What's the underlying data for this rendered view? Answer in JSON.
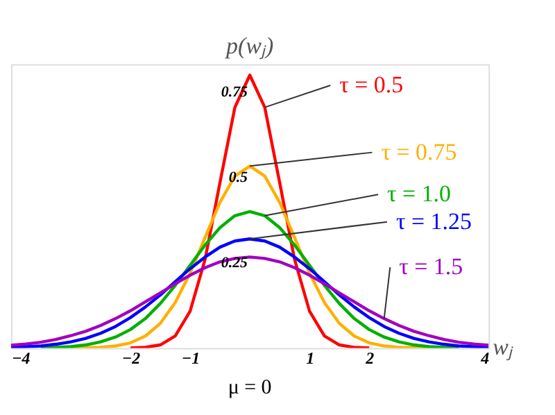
{
  "chart_data": {
    "type": "line",
    "xlabel": "wⱼ",
    "ylabel": "p(wⱼ)",
    "xlim": [
      -4,
      4
    ],
    "ylim": [
      0,
      0.83
    ],
    "xticks": [
      -4,
      -2,
      -1,
      1,
      2,
      4
    ],
    "yticks": [
      0.25,
      0.5,
      0.75
    ],
    "grid": false,
    "legend": false,
    "marker": "none",
    "line_style": "solid",
    "annotations": [
      "μ = 0"
    ],
    "series": [
      {
        "name": "τ = 0.5",
        "color": "#ff0000",
        "x": [
          -2,
          -1.75,
          -1.5,
          -1.25,
          -1,
          -0.75,
          -0.5,
          -0.25,
          0,
          0.25,
          0.5,
          0.75,
          1,
          1.25,
          1.5,
          1.75,
          2
        ],
        "values": [
          0.0,
          0.002,
          0.009,
          0.035,
          0.108,
          0.259,
          0.484,
          0.704,
          0.798,
          0.704,
          0.484,
          0.259,
          0.108,
          0.035,
          0.009,
          0.002,
          0.0
        ]
      },
      {
        "name": "τ = 0.75",
        "color": "#ffb000",
        "x": [
          -3,
          -2.75,
          -2.5,
          -2.25,
          -2,
          -1.75,
          -1.5,
          -1.25,
          -1,
          -0.75,
          -0.5,
          -0.25,
          0,
          0.25,
          0.5,
          0.75,
          1,
          1.25,
          1.5,
          1.75,
          2,
          2.25,
          2.5,
          2.75,
          3
        ],
        "values": [
          0.0,
          0.001,
          0.002,
          0.006,
          0.015,
          0.035,
          0.072,
          0.133,
          0.219,
          0.323,
          0.426,
          0.503,
          0.532,
          0.503,
          0.426,
          0.323,
          0.219,
          0.133,
          0.072,
          0.035,
          0.015,
          0.006,
          0.002,
          0.001,
          0.0
        ]
      },
      {
        "name": "τ = 1.0",
        "color": "#00b000",
        "x": [
          -3.5,
          -3.25,
          -3,
          -2.75,
          -2.5,
          -2.25,
          -2,
          -1.75,
          -1.5,
          -1.25,
          -1,
          -0.75,
          -0.5,
          -0.25,
          0,
          0.25,
          0.5,
          0.75,
          1,
          1.25,
          1.5,
          1.75,
          2,
          2.25,
          2.5,
          2.75,
          3,
          3.25,
          3.5
        ],
        "values": [
          0.001,
          0.002,
          0.004,
          0.009,
          0.018,
          0.032,
          0.054,
          0.086,
          0.13,
          0.183,
          0.242,
          0.301,
          0.352,
          0.387,
          0.399,
          0.387,
          0.352,
          0.301,
          0.242,
          0.183,
          0.13,
          0.086,
          0.054,
          0.032,
          0.018,
          0.009,
          0.004,
          0.002,
          0.001
        ]
      },
      {
        "name": "τ = 1.25",
        "color": "#0000ff",
        "x": [
          -4,
          -3.75,
          -3.5,
          -3.25,
          -3,
          -2.75,
          -2.5,
          -2.25,
          -2,
          -1.75,
          -1.5,
          -1.25,
          -1,
          -0.75,
          -0.5,
          -0.25,
          0,
          0.25,
          0.5,
          0.75,
          1,
          1.25,
          1.5,
          1.75,
          2,
          2.25,
          2.5,
          2.75,
          3,
          3.25,
          3.5,
          3.75,
          4
        ],
        "values": [
          0.002,
          0.004,
          0.006,
          0.011,
          0.018,
          0.028,
          0.043,
          0.063,
          0.089,
          0.12,
          0.155,
          0.194,
          0.232,
          0.266,
          0.295,
          0.313,
          0.319,
          0.313,
          0.295,
          0.266,
          0.232,
          0.194,
          0.155,
          0.12,
          0.089,
          0.063,
          0.043,
          0.028,
          0.018,
          0.011,
          0.006,
          0.004,
          0.002
        ]
      },
      {
        "name": "τ = 1.5",
        "color": "#a000c0",
        "x": [
          -4,
          -3.75,
          -3.5,
          -3.25,
          -3,
          -2.75,
          -2.5,
          -2.25,
          -2,
          -1.75,
          -1.5,
          -1.25,
          -1,
          -0.75,
          -0.5,
          -0.25,
          0,
          0.25,
          0.5,
          0.75,
          1,
          1.25,
          1.5,
          1.75,
          2,
          2.25,
          2.5,
          2.75,
          3,
          3.25,
          3.5,
          3.75,
          4
        ],
        "values": [
          0.008,
          0.012,
          0.017,
          0.025,
          0.036,
          0.049,
          0.066,
          0.086,
          0.109,
          0.135,
          0.161,
          0.188,
          0.213,
          0.235,
          0.252,
          0.262,
          0.266,
          0.262,
          0.252,
          0.235,
          0.213,
          0.188,
          0.161,
          0.135,
          0.109,
          0.086,
          0.066,
          0.049,
          0.036,
          0.025,
          0.017,
          0.012,
          0.008
        ]
      }
    ]
  }
}
